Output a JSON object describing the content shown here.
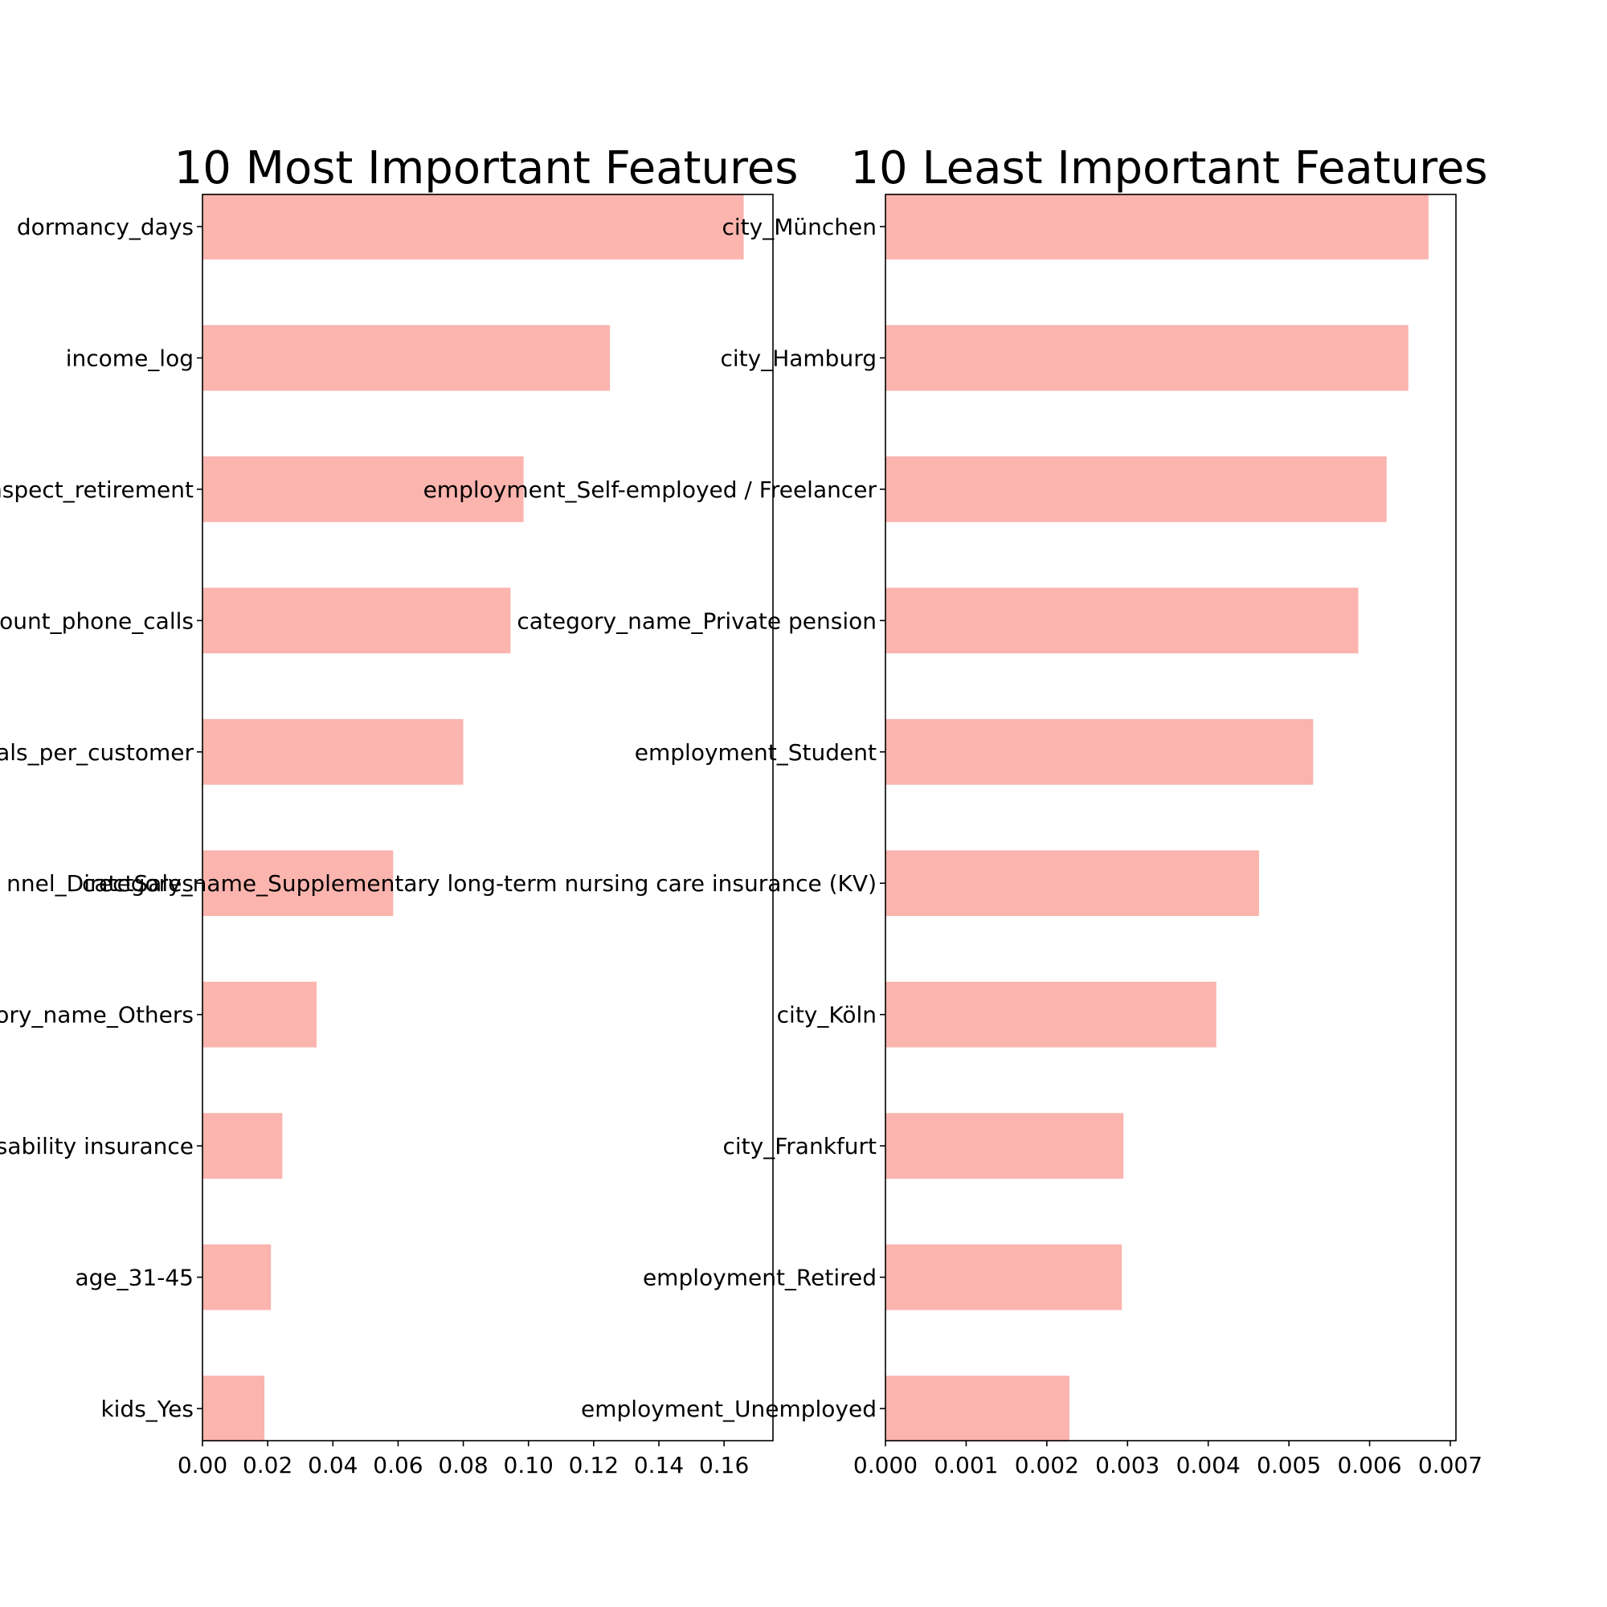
{
  "chart_data": [
    {
      "type": "bar",
      "orientation": "horizontal",
      "title": "10 Most Important Features",
      "xlabel": "",
      "ylabel": "",
      "xlim": [
        0,
        0.175
      ],
      "xticks": [
        "0.00",
        "0.02",
        "0.04",
        "0.06",
        "0.08",
        "0.10",
        "0.12",
        "0.14",
        "0.16"
      ],
      "bar_color": "#fbb4ae",
      "categories": [
        "dormancy_days",
        "income_log",
        "nspect_retirement",
        "ount_phone_calls",
        "als_per_customer",
        "nnel_DirectSales",
        "ory_name_Others",
        "sability insurance",
        "age_31-45",
        "kids_Yes"
      ],
      "values": [
        0.166,
        0.125,
        0.0985,
        0.0945,
        0.08,
        0.0585,
        0.035,
        0.0245,
        0.021,
        0.019
      ]
    },
    {
      "type": "bar",
      "orientation": "horizontal",
      "title": "10 Least Important Features",
      "xlabel": "",
      "ylabel": "",
      "xlim": [
        0,
        0.00707
      ],
      "xticks": [
        "0.000",
        "0.001",
        "0.002",
        "0.003",
        "0.004",
        "0.005",
        "0.006",
        "0.007"
      ],
      "bar_color": "#fbb4ae",
      "categories": [
        "city_München",
        "city_Hamburg",
        "employment_Self-employed / Freelancer",
        "category_name_Private pension",
        "employment_Student",
        "category_name_Supplementary long-term nursing care insurance (KV)",
        "city_Köln",
        "city_Frankfurt",
        "employment_Retired",
        "employment_Unemployed"
      ],
      "values": [
        0.00673,
        0.00648,
        0.00621,
        0.00586,
        0.0053,
        0.00463,
        0.0041,
        0.00295,
        0.00293,
        0.00228
      ]
    }
  ]
}
